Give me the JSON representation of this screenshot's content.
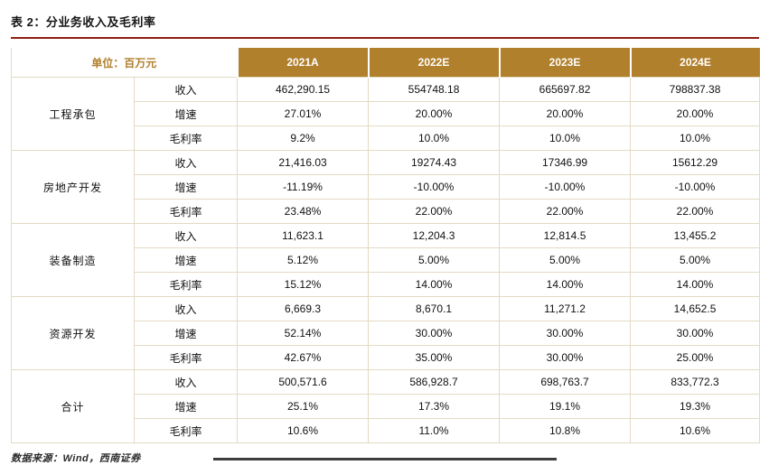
{
  "page": {
    "title": "表 2：分业务收入及毛利率",
    "source": "数据来源：Wind，西南证券"
  },
  "colors": {
    "header_bg": "#B1802D",
    "title_rule": "#8E1F12",
    "border": "#E3DAC4"
  },
  "table": {
    "unit_header": "单位：百万元",
    "year_headers": [
      "2021A",
      "2022E",
      "2023E",
      "2024E"
    ],
    "groups": [
      {
        "name": "工程承包",
        "rows": [
          {
            "metric": "收入",
            "values": [
              "462,290.15",
              "554748.18",
              "665697.82",
              "798837.38"
            ]
          },
          {
            "metric": "增速",
            "values": [
              "27.01%",
              "20.00%",
              "20.00%",
              "20.00%"
            ]
          },
          {
            "metric": "毛利率",
            "values": [
              "9.2%",
              "10.0%",
              "10.0%",
              "10.0%"
            ]
          }
        ]
      },
      {
        "name": "房地产开发",
        "rows": [
          {
            "metric": "收入",
            "values": [
              "21,416.03",
              "19274.43",
              "17346.99",
              "15612.29"
            ]
          },
          {
            "metric": "增速",
            "values": [
              "-11.19%",
              "-10.00%",
              "-10.00%",
              "-10.00%"
            ]
          },
          {
            "metric": "毛利率",
            "values": [
              "23.48%",
              "22.00%",
              "22.00%",
              "22.00%"
            ]
          }
        ]
      },
      {
        "name": "装备制造",
        "rows": [
          {
            "metric": "收入",
            "values": [
              "11,623.1",
              "12,204.3",
              "12,814.5",
              "13,455.2"
            ]
          },
          {
            "metric": "增速",
            "values": [
              "5.12%",
              "5.00%",
              "5.00%",
              "5.00%"
            ]
          },
          {
            "metric": "毛利率",
            "values": [
              "15.12%",
              "14.00%",
              "14.00%",
              "14.00%"
            ]
          }
        ]
      },
      {
        "name": "资源开发",
        "rows": [
          {
            "metric": "收入",
            "values": [
              "6,669.3",
              "8,670.1",
              "11,271.2",
              "14,652.5"
            ]
          },
          {
            "metric": "增速",
            "values": [
              "52.14%",
              "30.00%",
              "30.00%",
              "30.00%"
            ]
          },
          {
            "metric": "毛利率",
            "values": [
              "42.67%",
              "35.00%",
              "30.00%",
              "25.00%"
            ]
          }
        ]
      },
      {
        "name": "合计",
        "rows": [
          {
            "metric": "收入",
            "values": [
              "500,571.6",
              "586,928.7",
              "698,763.7",
              "833,772.3"
            ]
          },
          {
            "metric": "增速",
            "values": [
              "25.1%",
              "17.3%",
              "19.1%",
              "19.3%"
            ]
          },
          {
            "metric": "毛利率",
            "values": [
              "10.6%",
              "11.0%",
              "10.8%",
              "10.6%"
            ]
          }
        ]
      }
    ]
  }
}
